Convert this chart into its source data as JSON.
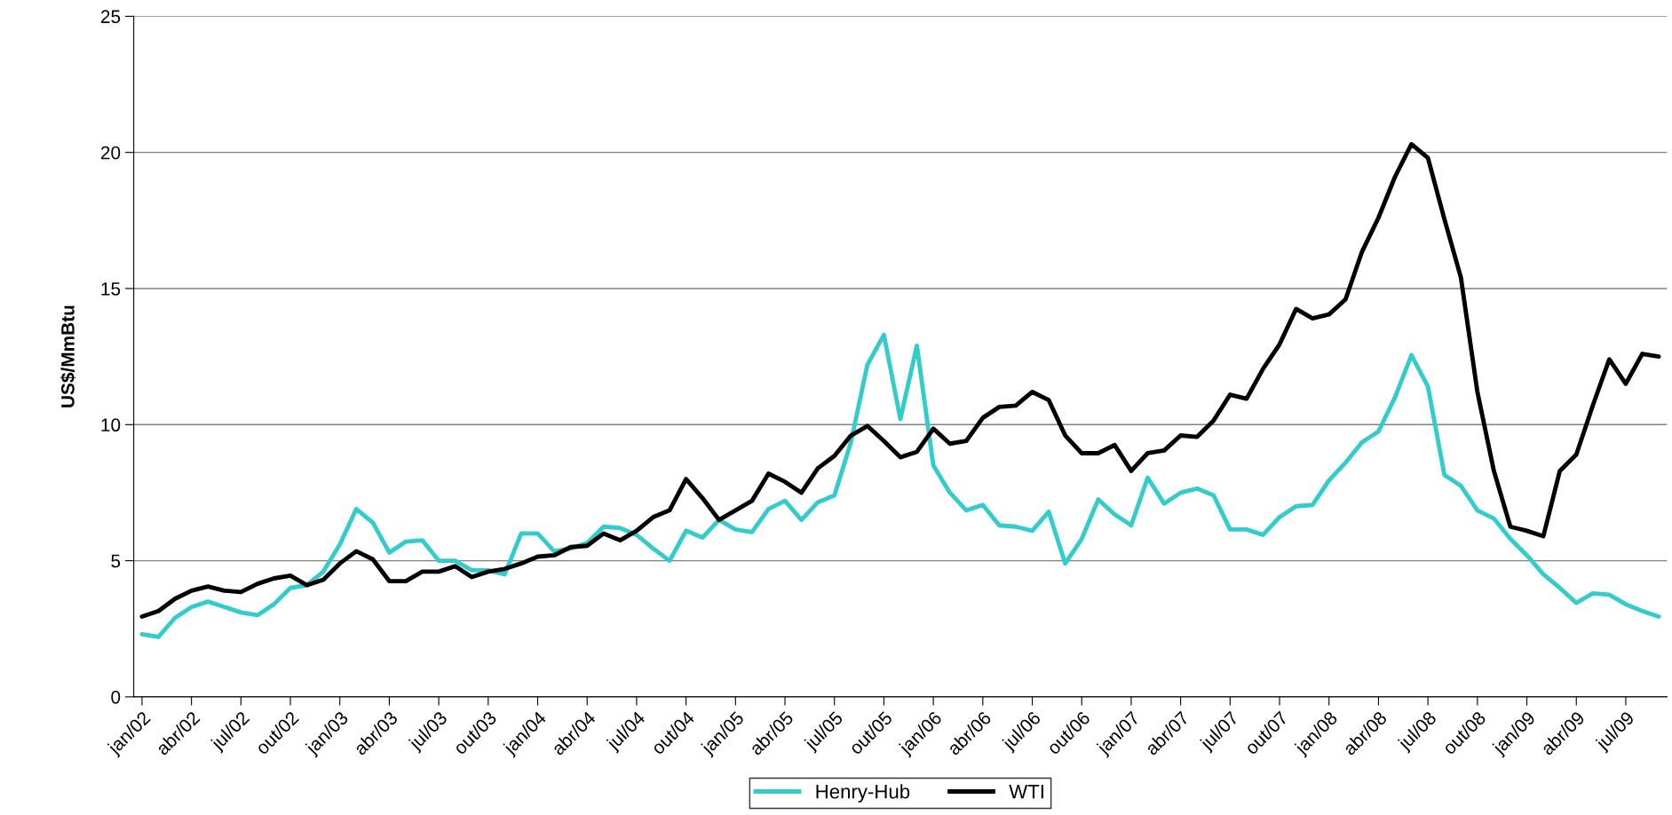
{
  "chart_data": {
    "type": "line",
    "ylabel": "US$/MmBtu",
    "categories": [
      "jan/02",
      null,
      null,
      "abr/02",
      null,
      null,
      "jul/02",
      null,
      null,
      "out/02",
      null,
      null,
      "jan/03",
      null,
      null,
      "abr/03",
      null,
      null,
      "jul/03",
      null,
      null,
      "out/03",
      null,
      null,
      "jan/04",
      null,
      null,
      "abr/04",
      null,
      null,
      "jul/04",
      null,
      null,
      "out/04",
      null,
      null,
      "jan/05",
      null,
      null,
      "abr/05",
      null,
      null,
      "jul/05",
      null,
      null,
      "out/05",
      null,
      null,
      "jan/06",
      null,
      null,
      "abr/06",
      null,
      null,
      "jul/06",
      null,
      null,
      "out/06",
      null,
      null,
      "jan/07",
      null,
      null,
      "abr/07",
      null,
      null,
      "jul/07",
      null,
      null,
      "out/07",
      null,
      null,
      "jan/08",
      null,
      null,
      "abr/08",
      null,
      null,
      "jul/08",
      null,
      null,
      "out/08",
      null,
      null,
      "jan/09",
      null,
      null,
      "abr/09",
      null,
      null,
      "jul/09",
      null,
      null
    ],
    "series": [
      {
        "name": "Henry-Hub",
        "color": "#33cccc",
        "values": [
          2.3,
          2.2,
          2.9,
          3.3,
          3.5,
          3.3,
          3.1,
          3.0,
          3.4,
          4.0,
          4.1,
          4.6,
          5.6,
          6.9,
          6.4,
          5.3,
          5.7,
          5.75,
          5.0,
          5.0,
          4.65,
          4.65,
          4.5,
          6.0,
          6.0,
          5.35,
          5.45,
          5.65,
          6.25,
          6.2,
          5.95,
          5.45,
          5.0,
          6.1,
          5.85,
          6.5,
          6.15,
          6.05,
          6.9,
          7.2,
          6.5,
          7.15,
          7.4,
          9.35,
          12.2,
          13.3,
          10.2,
          12.9,
          8.5,
          7.5,
          6.85,
          7.05,
          6.3,
          6.25,
          6.1,
          6.8,
          4.9,
          5.8,
          7.25,
          6.7,
          6.3,
          8.05,
          7.1,
          7.5,
          7.65,
          7.4,
          6.15,
          6.15,
          5.95,
          6.6,
          7.0,
          7.05,
          7.95,
          8.6,
          9.35,
          9.75,
          11.0,
          12.55,
          11.4,
          8.15,
          7.75,
          6.85,
          6.55,
          5.8,
          5.2,
          4.5,
          4.0,
          3.45,
          3.8,
          3.75,
          3.4,
          3.15,
          2.95
        ]
      },
      {
        "name": "WTI",
        "color": "#000000",
        "values": [
          2.95,
          3.15,
          3.6,
          3.9,
          4.05,
          3.9,
          3.85,
          4.15,
          4.35,
          4.45,
          4.1,
          4.3,
          4.9,
          5.35,
          5.05,
          4.25,
          4.25,
          4.6,
          4.6,
          4.8,
          4.4,
          4.6,
          4.7,
          4.9,
          5.15,
          5.2,
          5.5,
          5.55,
          6.0,
          5.75,
          6.1,
          6.6,
          6.85,
          8.0,
          7.3,
          6.5,
          6.85,
          7.2,
          8.2,
          7.9,
          7.5,
          8.4,
          8.85,
          9.6,
          9.95,
          9.4,
          8.8,
          9.0,
          9.85,
          9.3,
          9.4,
          10.25,
          10.65,
          10.7,
          11.2,
          10.9,
          9.6,
          8.95,
          8.95,
          9.25,
          8.3,
          8.95,
          9.05,
          9.6,
          9.55,
          10.15,
          11.1,
          10.95,
          12.05,
          12.95,
          14.25,
          13.9,
          14.05,
          14.6,
          16.35,
          17.6,
          19.1,
          20.3,
          19.8,
          17.55,
          15.4,
          11.2,
          8.3,
          6.25,
          6.1,
          5.9,
          8.3,
          8.9,
          10.7,
          12.4,
          11.5,
          12.6,
          12.5
        ]
      }
    ],
    "ylim": [
      0,
      25
    ],
    "yticks": [
      0,
      5,
      10,
      15,
      20,
      25
    ],
    "grid": "y",
    "legend": "bottom",
    "marker": "none",
    "line_style": "solid"
  }
}
